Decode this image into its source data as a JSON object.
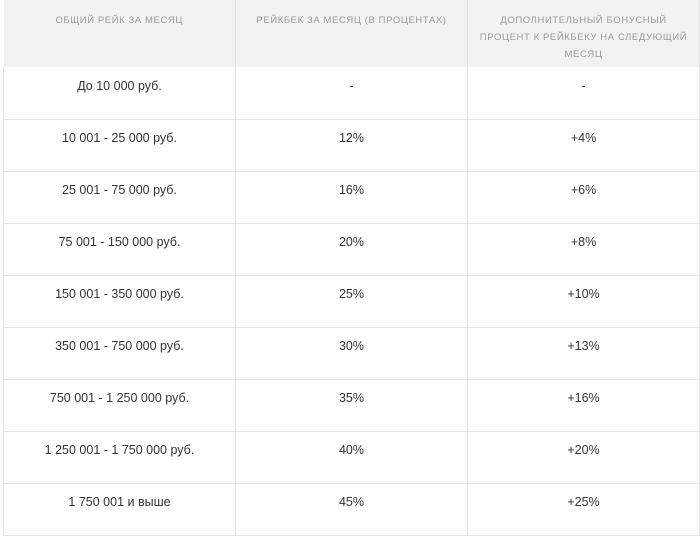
{
  "table": {
    "headers": [
      "ОБЩИЙ РЕЙК ЗА МЕСЯЦ",
      "РЕЙКБЕК ЗА МЕСЯЦ (В ПРОЦЕНТАХ)",
      "ДОПОЛНИТЕЛЬНЫЙ БОНУСНЫЙ ПРОЦЕНТ К РЕЙКБЕКУ НА СЛЕДУЮЩИЙ МЕСЯЦ"
    ],
    "rows": [
      [
        "До 10 000 руб.",
        "-",
        "-"
      ],
      [
        "10 001 - 25 000 руб.",
        "12%",
        "+4%"
      ],
      [
        "25 001 - 75 000 руб.",
        "16%",
        "+6%"
      ],
      [
        "75 001 - 150 000 руб.",
        "20%",
        "+8%"
      ],
      [
        "150 001 - 350 000 руб.",
        "25%",
        "+10%"
      ],
      [
        "350 001 - 750 000 руб.",
        "30%",
        "+13%"
      ],
      [
        "750 001 - 1 250 000 руб.",
        "35%",
        "+16%"
      ],
      [
        "1 250 001 - 1 750 000 руб.",
        "40%",
        "+20%"
      ],
      [
        "1 750 001 и выше",
        "45%",
        "+25%"
      ]
    ]
  }
}
